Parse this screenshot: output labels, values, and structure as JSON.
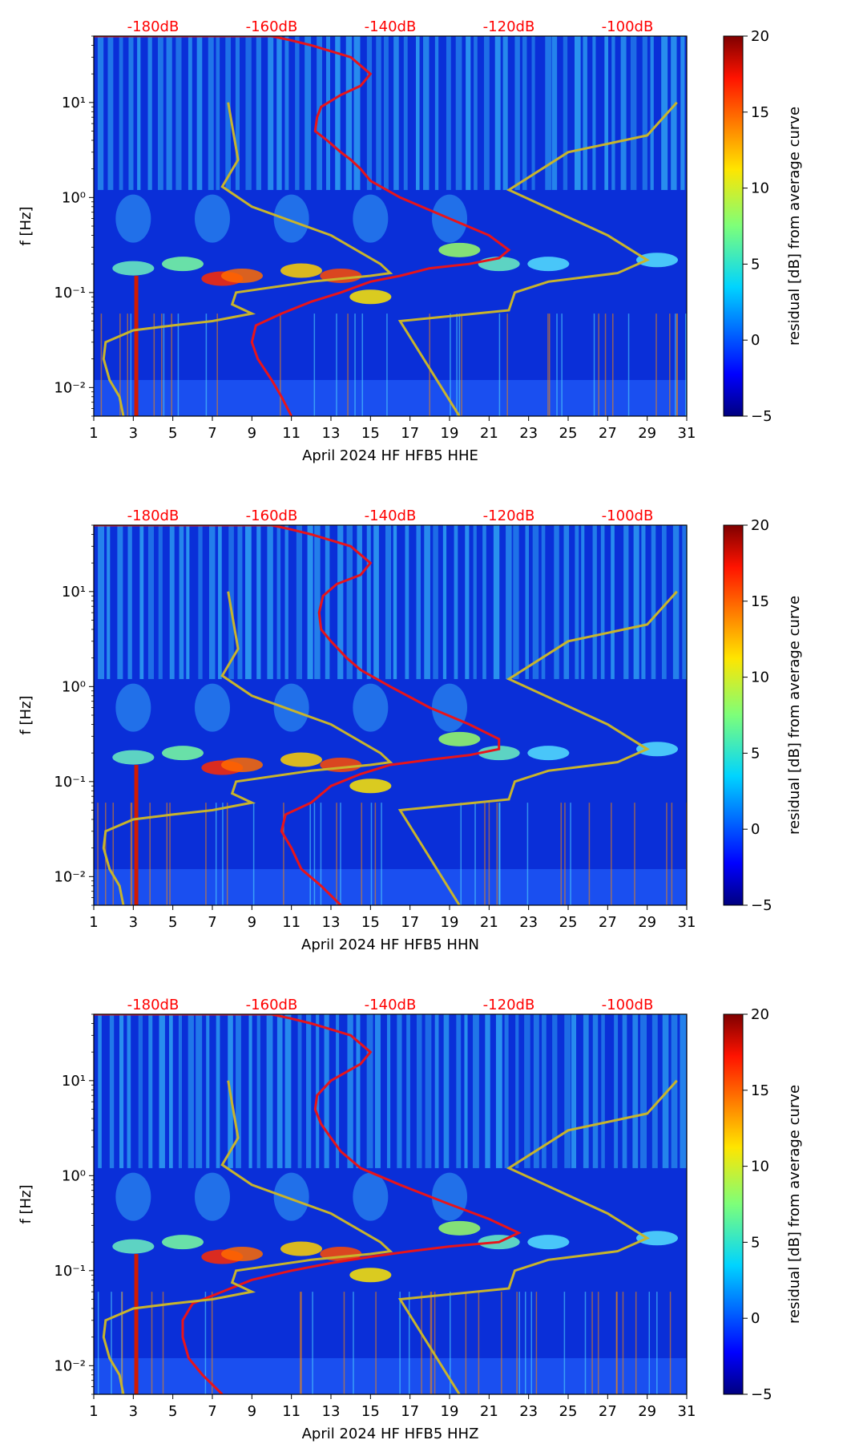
{
  "colors": {
    "red_curve": "#e8141a",
    "gold_curve": "#c8b42c",
    "top_labels": "#ff0000"
  },
  "chart_data": [
    {
      "type": "heatmap",
      "title": "",
      "xlabel": "April 2024 HF HFB5  HHE",
      "ylabel": "f [Hz]",
      "x_ticks": [
        "1",
        "3",
        "5",
        "7",
        "9",
        "11",
        "13",
        "15",
        "17",
        "19",
        "21",
        "23",
        "25",
        "27",
        "29",
        "31"
      ],
      "xlim": [
        1,
        31
      ],
      "y_ticks": [
        "10⁻²",
        "10⁻¹",
        "10⁰",
        "10¹"
      ],
      "ylim": [
        0.005,
        50
      ],
      "top_axis_labels": [
        "-180dB",
        "-160dB",
        "-140dB",
        "-120dB",
        "-100dB"
      ],
      "colorbar": {
        "label": "residual [dB] from average curve",
        "range": [
          -5,
          20
        ],
        "ticks": [
          "−5",
          "0",
          "5",
          "10",
          "15",
          "20"
        ]
      },
      "series": [
        {
          "name": "mean PSD (red)",
          "x": [
            11.0,
            10.5,
            10.0,
            9.3,
            9.0,
            9.2,
            10.5,
            12.0,
            13.5,
            15.0,
            16.5,
            18.0,
            20.0,
            21.5,
            22.0,
            21.0,
            19.0,
            16.5,
            15.0,
            14.5,
            14.0,
            13.5,
            12.8,
            12.2,
            12.3,
            12.5,
            13.5,
            14.5,
            15.0,
            14.0,
            12.0,
            11.0,
            10.0,
            1.0
          ],
          "y": [
            0.005,
            0.008,
            0.012,
            0.02,
            0.03,
            0.045,
            0.06,
            0.08,
            0.1,
            0.13,
            0.15,
            0.18,
            0.2,
            0.23,
            0.28,
            0.4,
            0.6,
            1.0,
            1.5,
            2.0,
            2.5,
            3.0,
            4.0,
            5.0,
            7.0,
            9.0,
            12.0,
            15.0,
            20.0,
            30.0,
            40.0,
            45.0,
            50.0,
            50.0
          ]
        },
        {
          "name": "noise model (gold)",
          "x": [
            19.5,
            16.5,
            22.0,
            22.3,
            24.0,
            27.5,
            29.0,
            27.0,
            22.0,
            25.0,
            29.0,
            30.5
          ],
          "y": [
            0.005,
            0.05,
            0.065,
            0.1,
            0.13,
            0.16,
            0.22,
            0.4,
            1.2,
            3.0,
            4.5,
            10.0
          ]
        },
        {
          "name": "noise model (gold, low)",
          "x": [
            2.5,
            2.3,
            1.8,
            1.5,
            1.6,
            3.0,
            5.0,
            7.0,
            9.0,
            8.0,
            8.2,
            12.0,
            15.0,
            16.0,
            15.5,
            13.0,
            9.0,
            7.5,
            8.3,
            7.8
          ],
          "y": [
            0.005,
            0.008,
            0.012,
            0.02,
            0.03,
            0.04,
            0.045,
            0.05,
            0.06,
            0.075,
            0.1,
            0.13,
            0.15,
            0.16,
            0.2,
            0.4,
            0.8,
            1.3,
            2.5,
            10.0
          ]
        }
      ]
    },
    {
      "type": "heatmap",
      "title": "",
      "xlabel": "April 2024 HF HFB5  HHN",
      "ylabel": "f [Hz]",
      "x_ticks": [
        "1",
        "3",
        "5",
        "7",
        "9",
        "11",
        "13",
        "15",
        "17",
        "19",
        "21",
        "23",
        "25",
        "27",
        "29",
        "31"
      ],
      "xlim": [
        1,
        31
      ],
      "y_ticks": [
        "10⁻²",
        "10⁻¹",
        "10⁰",
        "10¹"
      ],
      "ylim": [
        0.005,
        50
      ],
      "top_axis_labels": [
        "-180dB",
        "-160dB",
        "-140dB",
        "-120dB",
        "-100dB"
      ],
      "colorbar": {
        "label": "residual [dB] from average curve",
        "range": [
          -5,
          20
        ],
        "ticks": [
          "−5",
          "0",
          "5",
          "10",
          "15",
          "20"
        ]
      },
      "series": [
        {
          "name": "mean PSD (red)",
          "x": [
            13.5,
            12.5,
            11.5,
            11.0,
            10.5,
            10.7,
            12.0,
            13.0,
            14.5,
            16.0,
            18.0,
            20.0,
            21.5,
            21.5,
            20.0,
            18.0,
            16.0,
            14.5,
            13.8,
            13.0,
            12.5,
            12.4,
            12.6,
            13.3,
            14.5,
            15.0,
            14.0,
            12.0,
            11.0,
            10.0,
            1.0
          ],
          "y": [
            0.005,
            0.008,
            0.012,
            0.02,
            0.03,
            0.045,
            0.06,
            0.09,
            0.12,
            0.15,
            0.17,
            0.19,
            0.22,
            0.28,
            0.4,
            0.6,
            1.0,
            1.5,
            2.0,
            3.0,
            4.0,
            6.0,
            9.0,
            12.0,
            15.0,
            20.0,
            30.0,
            40.0,
            45.0,
            50.0,
            50.0
          ]
        },
        {
          "name": "noise model (gold)",
          "x": [
            19.5,
            16.5,
            22.0,
            22.3,
            24.0,
            27.5,
            29.0,
            27.0,
            22.0,
            25.0,
            29.0,
            30.5
          ],
          "y": [
            0.005,
            0.05,
            0.065,
            0.1,
            0.13,
            0.16,
            0.22,
            0.4,
            1.2,
            3.0,
            4.5,
            10.0
          ]
        },
        {
          "name": "noise model (gold, low)",
          "x": [
            2.5,
            2.3,
            1.8,
            1.5,
            1.6,
            3.0,
            5.0,
            7.0,
            9.0,
            8.0,
            8.2,
            12.0,
            15.0,
            16.0,
            15.5,
            13.0,
            9.0,
            7.5,
            8.3,
            7.8
          ],
          "y": [
            0.005,
            0.008,
            0.012,
            0.02,
            0.03,
            0.04,
            0.045,
            0.05,
            0.06,
            0.075,
            0.1,
            0.13,
            0.15,
            0.16,
            0.2,
            0.4,
            0.8,
            1.3,
            2.5,
            10.0
          ]
        }
      ]
    },
    {
      "type": "heatmap",
      "title": "",
      "xlabel": "April 2024 HF HFB5  HHZ",
      "ylabel": "f [Hz]",
      "x_ticks": [
        "1",
        "3",
        "5",
        "7",
        "9",
        "11",
        "13",
        "15",
        "17",
        "19",
        "21",
        "23",
        "25",
        "27",
        "29",
        "31"
      ],
      "xlim": [
        1,
        31
      ],
      "y_ticks": [
        "10⁻²",
        "10⁻¹",
        "10⁰",
        "10¹"
      ],
      "ylim": [
        0.005,
        50
      ],
      "top_axis_labels": [
        "-180dB",
        "-160dB",
        "-140dB",
        "-120dB",
        "-100dB"
      ],
      "colorbar": {
        "label": "residual [dB] from average curve",
        "range": [
          -5,
          20
        ],
        "ticks": [
          "−5",
          "0",
          "5",
          "10",
          "15",
          "20"
        ]
      },
      "series": [
        {
          "name": "mean PSD (red)",
          "x": [
            7.5,
            6.5,
            5.8,
            5.5,
            5.5,
            6.0,
            7.5,
            9.0,
            11.0,
            13.0,
            15.0,
            17.0,
            19.0,
            21.5,
            22.5,
            21.0,
            19.0,
            16.5,
            14.5,
            13.5,
            13.0,
            12.5,
            12.2,
            12.3,
            13.0,
            14.5,
            15.0,
            14.0,
            12.0,
            11.0,
            10.0,
            1.0
          ],
          "y": [
            0.005,
            0.008,
            0.012,
            0.02,
            0.03,
            0.045,
            0.06,
            0.08,
            0.1,
            0.12,
            0.14,
            0.16,
            0.18,
            0.2,
            0.25,
            0.35,
            0.5,
            0.8,
            1.2,
            1.8,
            2.5,
            3.5,
            5.0,
            7.0,
            10.0,
            15.0,
            20.0,
            30.0,
            40.0,
            45.0,
            50.0,
            50.0
          ]
        },
        {
          "name": "noise model (gold)",
          "x": [
            19.5,
            16.5,
            22.0,
            22.3,
            24.0,
            27.5,
            29.0,
            27.0,
            22.0,
            25.0,
            29.0,
            30.5
          ],
          "y": [
            0.005,
            0.05,
            0.065,
            0.1,
            0.13,
            0.16,
            0.22,
            0.4,
            1.2,
            3.0,
            4.5,
            10.0
          ]
        },
        {
          "name": "noise model (gold, low)",
          "x": [
            2.5,
            2.3,
            1.8,
            1.5,
            1.6,
            3.0,
            5.0,
            7.0,
            9.0,
            8.0,
            8.2,
            12.0,
            15.0,
            16.0,
            15.5,
            13.0,
            9.0,
            7.5,
            8.3,
            7.8
          ],
          "y": [
            0.005,
            0.008,
            0.012,
            0.02,
            0.03,
            0.04,
            0.045,
            0.05,
            0.06,
            0.075,
            0.1,
            0.13,
            0.15,
            0.16,
            0.2,
            0.4,
            0.8,
            1.3,
            2.5,
            10.0
          ]
        }
      ]
    }
  ]
}
